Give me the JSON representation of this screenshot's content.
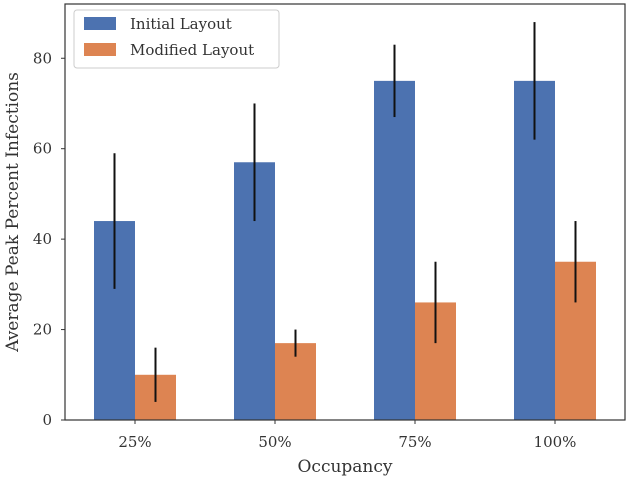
{
  "chart_data": {
    "type": "bar",
    "title": "",
    "xlabel": "Occupancy",
    "ylabel": "Average Peak Percent Infections",
    "categories": [
      "25%",
      "50%",
      "75%",
      "100%"
    ],
    "ylim": [
      0,
      92
    ],
    "yticks": [
      0,
      20,
      40,
      60,
      80
    ],
    "grid": false,
    "legend_position": "top-left",
    "series": [
      {
        "name": "Initial Layout",
        "color": "#4c72b0",
        "values": [
          44,
          57,
          75,
          75
        ],
        "error_low": [
          29,
          44,
          67,
          62
        ],
        "error_high": [
          59,
          70,
          83,
          88
        ]
      },
      {
        "name": "Modified Layout",
        "color": "#dd8452",
        "values": [
          10,
          17,
          26,
          35
        ],
        "error_low": [
          4,
          14,
          17,
          26
        ],
        "error_high": [
          16,
          20,
          35,
          44
        ]
      }
    ]
  }
}
